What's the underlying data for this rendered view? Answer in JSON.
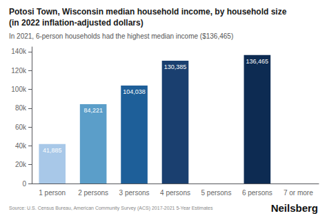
{
  "chart_data": {
    "type": "bar",
    "title": "Potosi Town, Wisconsin median household income, by household size\n(in 2022 inflation-adjusted dollars)",
    "subtitle": "In 2021, 6-person households had the highest median income ($136,465)",
    "annotations": [
      "Source: U.S. Census Bureau, American Community Survey (ACS) 2017-2021 5-Year Estimates",
      "Neilsberg"
    ],
    "categories": [
      "1 person",
      "2 persons",
      "3 persons",
      "4 persons",
      "5 persons",
      "6 persons",
      "7 or more"
    ],
    "values": [
      41885,
      84221,
      104038,
      130385,
      0,
      136465,
      0
    ],
    "value_labels": [
      "41,885",
      "84,221",
      "104,038",
      "130,385",
      null,
      "136,465",
      null
    ],
    "colors": [
      "#a8c8e8",
      "#5b9ec9",
      "#1e5f99",
      "#1a3f6f",
      "#ffffff",
      "#0d2b52",
      "#ffffff"
    ],
    "ylim": [
      0,
      145000
    ],
    "yticks": [
      0,
      {
        "value": 20000,
        "label": "20k"
      },
      {
        "value": 40000,
        "label": "40k"
      },
      {
        "value": 60000,
        "label": "60k"
      },
      {
        "value": 80000,
        "label": "80k"
      },
      {
        "value": 100000,
        "label": "100k"
      },
      {
        "value": 120000,
        "label": "120k"
      },
      {
        "value": 140000,
        "label": "140k"
      }
    ],
    "grid": false,
    "data_labels": true
  }
}
